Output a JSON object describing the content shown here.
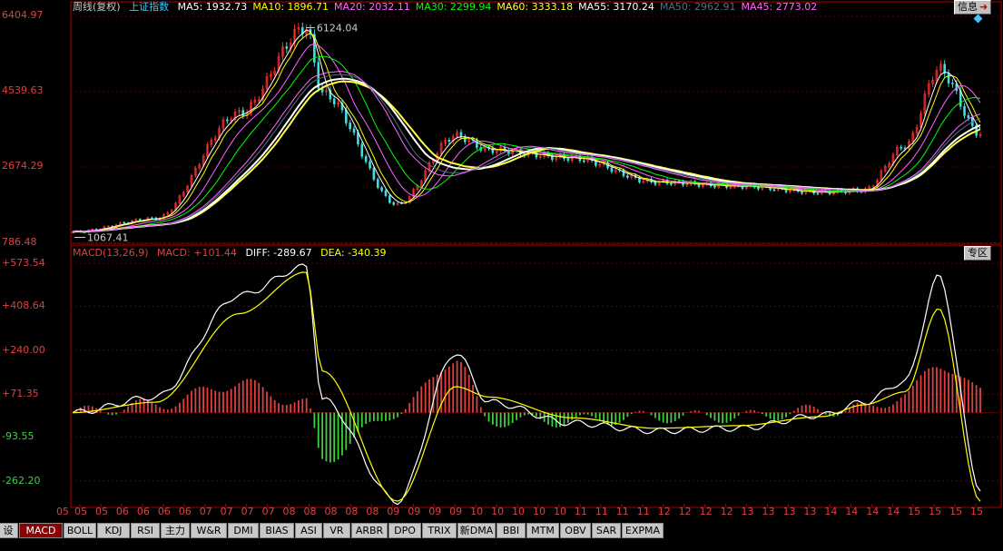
{
  "main_legend": {
    "title": "周线(复权)",
    "index": "上证指数",
    "items": [
      {
        "label": "MA5: 1932.73",
        "color": "#ffffff"
      },
      {
        "label": "MA10: 1896.71",
        "color": "#ffff00"
      },
      {
        "label": "MA20: 2032.11",
        "color": "#ff66ff"
      },
      {
        "label": "MA30: 2299.94",
        "color": "#00ff00"
      },
      {
        "label": "MA60: 3333.18",
        "color": "#ffff40"
      },
      {
        "label": "MA55: 3170.24",
        "color": "#ffffff"
      },
      {
        "label": "MA50: 2962.91",
        "color": "#507080"
      },
      {
        "label": "MA45: 2773.02",
        "color": "#ff66ff"
      }
    ]
  },
  "info_button": "信息",
  "zone_button": "专区",
  "price_axis": [
    "6404.97",
    "4539.63",
    "2674.29",
    "786.48"
  ],
  "price_annotations": {
    "high": "6124.04",
    "low": "1067.41"
  },
  "macd_legend": {
    "name": "MACD(13,26,9)",
    "macd": "MACD: +101.44",
    "diff": "DIFF: -289.67",
    "dea": "DEA: -340.39"
  },
  "macd_axis": [
    "+573.54",
    "+408.64",
    "+240.00",
    "+71.35",
    "-93.55",
    "-262.20"
  ],
  "x_ticks": [
    "05",
    "05",
    "06",
    "06",
    "06",
    "06",
    "07",
    "07",
    "07",
    "07",
    "08",
    "08",
    "08",
    "08",
    "08",
    "09",
    "09",
    "09",
    "09",
    "10",
    "10",
    "10",
    "10",
    "10",
    "11",
    "11",
    "11",
    "11",
    "12",
    "12",
    "12",
    "12",
    "13",
    "13",
    "13",
    "13",
    "14",
    "14",
    "14",
    "14",
    "15",
    "15",
    "15",
    "15"
  ],
  "tabs": [
    "设置",
    "MACD",
    "BOLL",
    "KDJ",
    "RSI",
    "主力",
    "W&R",
    "DMI",
    "BIAS",
    "ASI",
    "VR",
    "ARBR",
    "DPO",
    "TRIX",
    "新DMA",
    "BBI",
    "MTM",
    "OBV",
    "SAR",
    "EXPMA"
  ],
  "active_tab": "MACD",
  "chart_data": [
    {
      "type": "line",
      "title": "上证指数 周线(复权)",
      "x": [
        2005,
        2006,
        2007,
        2007.8,
        2008,
        2008.9,
        2009.6,
        2010,
        2011,
        2012,
        2013,
        2014,
        2014.5,
        2015,
        2015.4,
        2015.9
      ],
      "series": [
        {
          "name": "上证指数",
          "values": [
            1067,
            1400,
            4000,
            6124,
            4500,
            1750,
            3450,
            3100,
            2900,
            2300,
            2200,
            2050,
            2100,
            3200,
            5100,
            3500
          ]
        }
      ],
      "ylim": [
        786.48,
        6404.97
      ],
      "yticks": [
        6404.97,
        4539.63,
        2674.29,
        786.48
      ]
    },
    {
      "type": "line",
      "title": "MACD(13,26,9)",
      "x": [
        2005,
        2006,
        2007,
        2007.8,
        2008,
        2008.9,
        2009.6,
        2010,
        2011,
        2012,
        2013,
        2014,
        2014.5,
        2015,
        2015.4,
        2015.9
      ],
      "series": [
        {
          "name": "DIFF",
          "values": [
            0,
            60,
            450,
            560,
            50,
            -340,
            230,
            40,
            -40,
            -70,
            -60,
            -10,
            40,
            120,
            520,
            -289.67
          ]
        },
        {
          "name": "DEA",
          "values": [
            0,
            40,
            380,
            540,
            160,
            -340,
            100,
            60,
            -20,
            -60,
            -50,
            -15,
            30,
            80,
            400,
            -340.39
          ]
        }
      ],
      "ylim": [
        -350,
        573.54
      ],
      "yticks": [
        573.54,
        408.64,
        240.0,
        71.35,
        -93.55,
        -262.2
      ]
    }
  ]
}
